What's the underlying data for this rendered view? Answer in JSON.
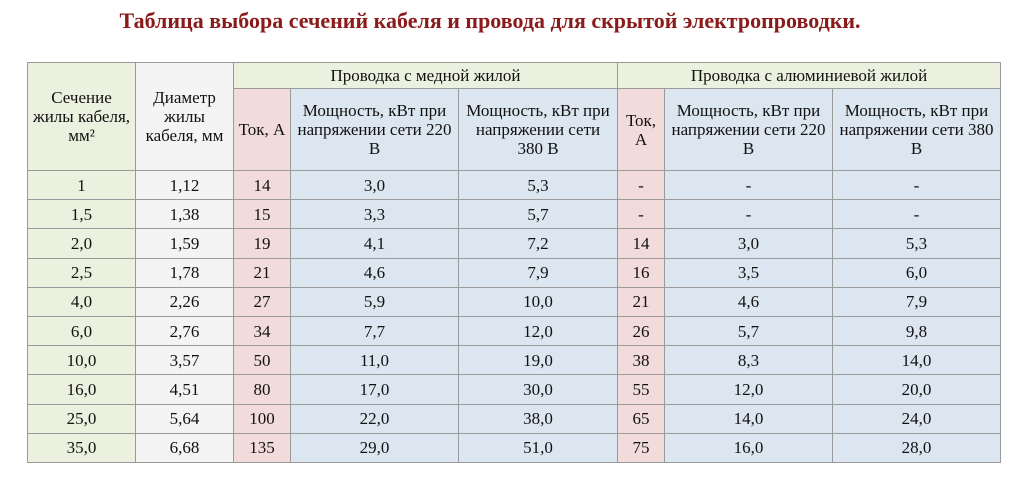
{
  "title": "Таблица выбора сечений кабеля и провода для скрытой электропроводки.",
  "table": {
    "header_groups": [
      "Проводка с медной жилой",
      "Проводка с алюминиевой жилой"
    ],
    "columns": [
      "Сечение жилы кабеля, мм²",
      "Диаметр жилы кабеля, мм",
      "Ток, А",
      "Мощность, кВт при напряжении сети 220 В",
      "Мощность, кВт при напряжении сети 380 В",
      "Ток, А",
      "Мощность, кВт при напряжении сети 220 В",
      "Мощность, кВт при напряжении сети 380 В"
    ],
    "rows": [
      [
        "1",
        "1,12",
        "14",
        "3,0",
        "5,3",
        "-",
        "-",
        "-"
      ],
      [
        "1,5",
        "1,38",
        "15",
        "3,3",
        "5,7",
        "-",
        "-",
        "-"
      ],
      [
        "2,0",
        "1,59",
        "19",
        "4,1",
        "7,2",
        "14",
        "3,0",
        "5,3"
      ],
      [
        "2,5",
        "1,78",
        "21",
        "4,6",
        "7,9",
        "16",
        "3,5",
        "6,0"
      ],
      [
        "4,0",
        "2,26",
        "27",
        "5,9",
        "10,0",
        "21",
        "4,6",
        "7,9"
      ],
      [
        "6,0",
        "2,76",
        "34",
        "7,7",
        "12,0",
        "26",
        "5,7",
        "9,8"
      ],
      [
        "10,0",
        "3,57",
        "50",
        "11,0",
        "19,0",
        "38",
        "8,3",
        "14,0"
      ],
      [
        "16,0",
        "4,51",
        "80",
        "17,0",
        "30,0",
        "55",
        "12,0",
        "20,0"
      ],
      [
        "25,0",
        "5,64",
        "100",
        "22,0",
        "38,0",
        "65",
        "14,0",
        "24,0"
      ],
      [
        "35,0",
        "6,68",
        "135",
        "29,0",
        "51,0",
        "75",
        "16,0",
        "28,0"
      ]
    ]
  }
}
